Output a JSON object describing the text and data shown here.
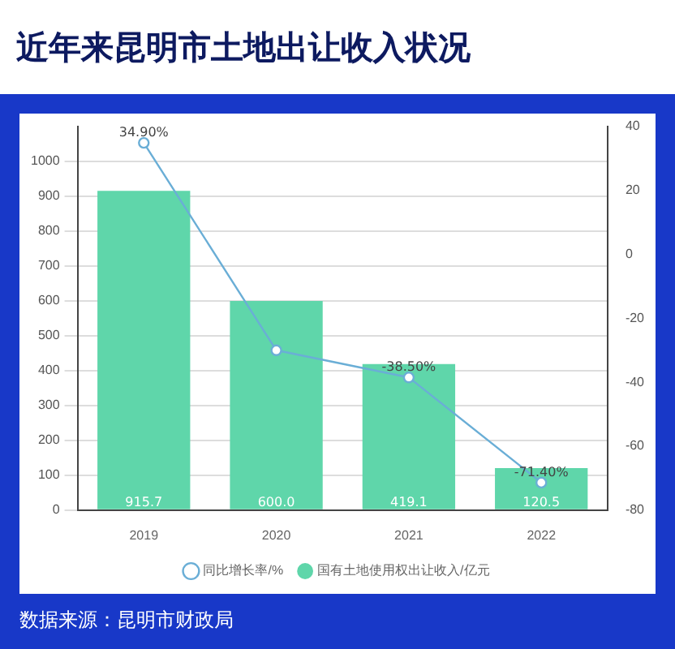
{
  "chart_data": {
    "type": "bar",
    "title": "近年来昆明市土地出让收入状况",
    "categories": [
      "2019",
      "2020",
      "2021",
      "2022"
    ],
    "series": [
      {
        "name": "同比增长率/%",
        "type": "line",
        "axis": "y2",
        "color": "#6aaed6",
        "values": [
          34.9,
          -30,
          -38.5,
          -71.4
        ],
        "value_labels": [
          "34.90%",
          null,
          "-38.50%",
          "-71.40%"
        ]
      },
      {
        "name": "国有土地使用权出让收入/亿元",
        "color": "#5fd6aa",
        "values": [
          915.7,
          600.0,
          419.1,
          120.5
        ],
        "value_labels": [
          "915.7",
          "600.0",
          "419.1",
          "120.5"
        ]
      }
    ],
    "ylim": [
      0,
      1100
    ],
    "yticks": [
      0,
      100,
      200,
      300,
      400,
      500,
      600,
      700,
      800,
      900,
      1000
    ],
    "y2lim": [
      -80,
      40
    ],
    "y2ticks": [
      -80,
      -60,
      -40,
      -20,
      0,
      20,
      40
    ],
    "grid": "y",
    "legend": "bottom",
    "marker": "circle",
    "annotations": [
      "数据来源：昆明市财政局"
    ]
  }
}
